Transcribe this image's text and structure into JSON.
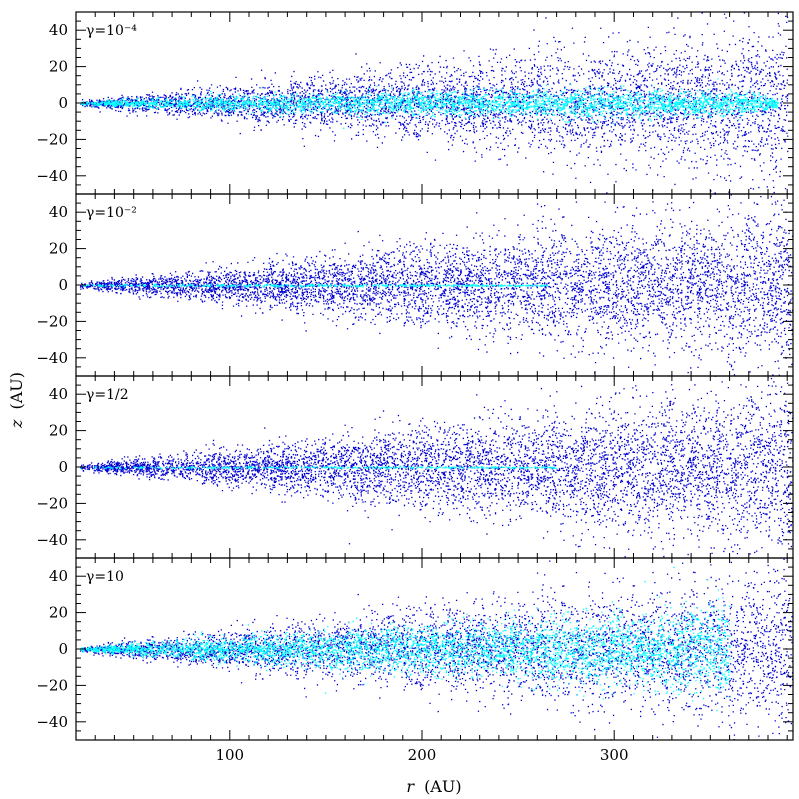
{
  "chart_data": [
    {
      "type": "scatter",
      "panel_label": "γ=10⁻⁴",
      "xlim": [
        20,
        393
      ],
      "ylim": [
        -50,
        50
      ],
      "series": [
        {
          "color": "#0000d0",
          "shape": "broad wedge from r≈20 widening to |z|≈40 near r≈330, sparse beyond",
          "profile": {
            "r": [
              22,
              100,
              200,
              300,
              340,
              370,
              390
            ],
            "half_width": [
              1.5,
              10,
              20,
              30,
              35,
              40,
              45
            ]
          }
        },
        {
          "color": "#00ffff",
          "shape": "thick midplane band reaching r≈385",
          "profile": {
            "r": [
              22,
              100,
              200,
              300,
              370,
              385
            ],
            "half_width": [
              1,
              4.5,
              6.5,
              7.5,
              6,
              2
            ]
          }
        }
      ]
    },
    {
      "type": "scatter",
      "panel_label": "γ=10⁻²",
      "xlim": [
        20,
        393
      ],
      "ylim": [
        -50,
        50
      ],
      "series": [
        {
          "color": "#0000d0",
          "shape": "broad wedge widening with r",
          "profile": {
            "r": [
              22,
              100,
              200,
              300,
              360,
              393
            ],
            "half_width": [
              1.5,
              10,
              22,
              33,
              40,
              48
            ]
          }
        },
        {
          "color": "#00ffff",
          "shape": "very thin midplane line to r≈265",
          "profile": {
            "r": [
              22,
              150,
              265
            ],
            "half_width": [
              0.5,
              0.8,
              0.3
            ]
          }
        }
      ]
    },
    {
      "type": "scatter",
      "panel_label": "γ=1/2",
      "xlim": [
        20,
        393
      ],
      "ylim": [
        -50,
        50
      ],
      "series": [
        {
          "color": "#0000d0",
          "shape": "broad wedge widening with r",
          "profile": {
            "r": [
              22,
              100,
              200,
              300,
              360,
              393
            ],
            "half_width": [
              1.5,
              10,
              22,
              33,
              40,
              48
            ]
          }
        },
        {
          "color": "#00ffff",
          "shape": "very thin midplane line to r≈270",
          "profile": {
            "r": [
              22,
              150,
              270
            ],
            "half_width": [
              0.4,
              0.6,
              0.4
            ]
          }
        }
      ]
    },
    {
      "type": "scatter",
      "panel_label": "γ=10",
      "xlim": [
        20,
        393
      ],
      "ylim": [
        -50,
        50
      ],
      "series": [
        {
          "color": "#0000d0",
          "shape": "wedge widening with r, sparse beyond r≈340",
          "profile": {
            "r": [
              22,
              100,
              200,
              300,
              340,
              380,
              393
            ],
            "half_width": [
              1.5,
              11,
              22,
              30,
              35,
              42,
              45
            ]
          }
        },
        {
          "color": "#00ffff",
          "shape": "wide band spreading to |z|≈25 near r≈330",
          "profile": {
            "r": [
              22,
              100,
              200,
              300,
              340,
              360
            ],
            "half_width": [
              1,
              7,
              13,
              18,
              22,
              25
            ]
          }
        }
      ]
    }
  ],
  "axes": {
    "x_ticks": [
      100,
      200,
      300
    ],
    "x_label_var": "r",
    "x_label_unit": "(AU)",
    "y_ticks": [
      40,
      20,
      0,
      -20,
      -40
    ],
    "y_label_var": "z",
    "y_label_unit": "(AU)"
  }
}
